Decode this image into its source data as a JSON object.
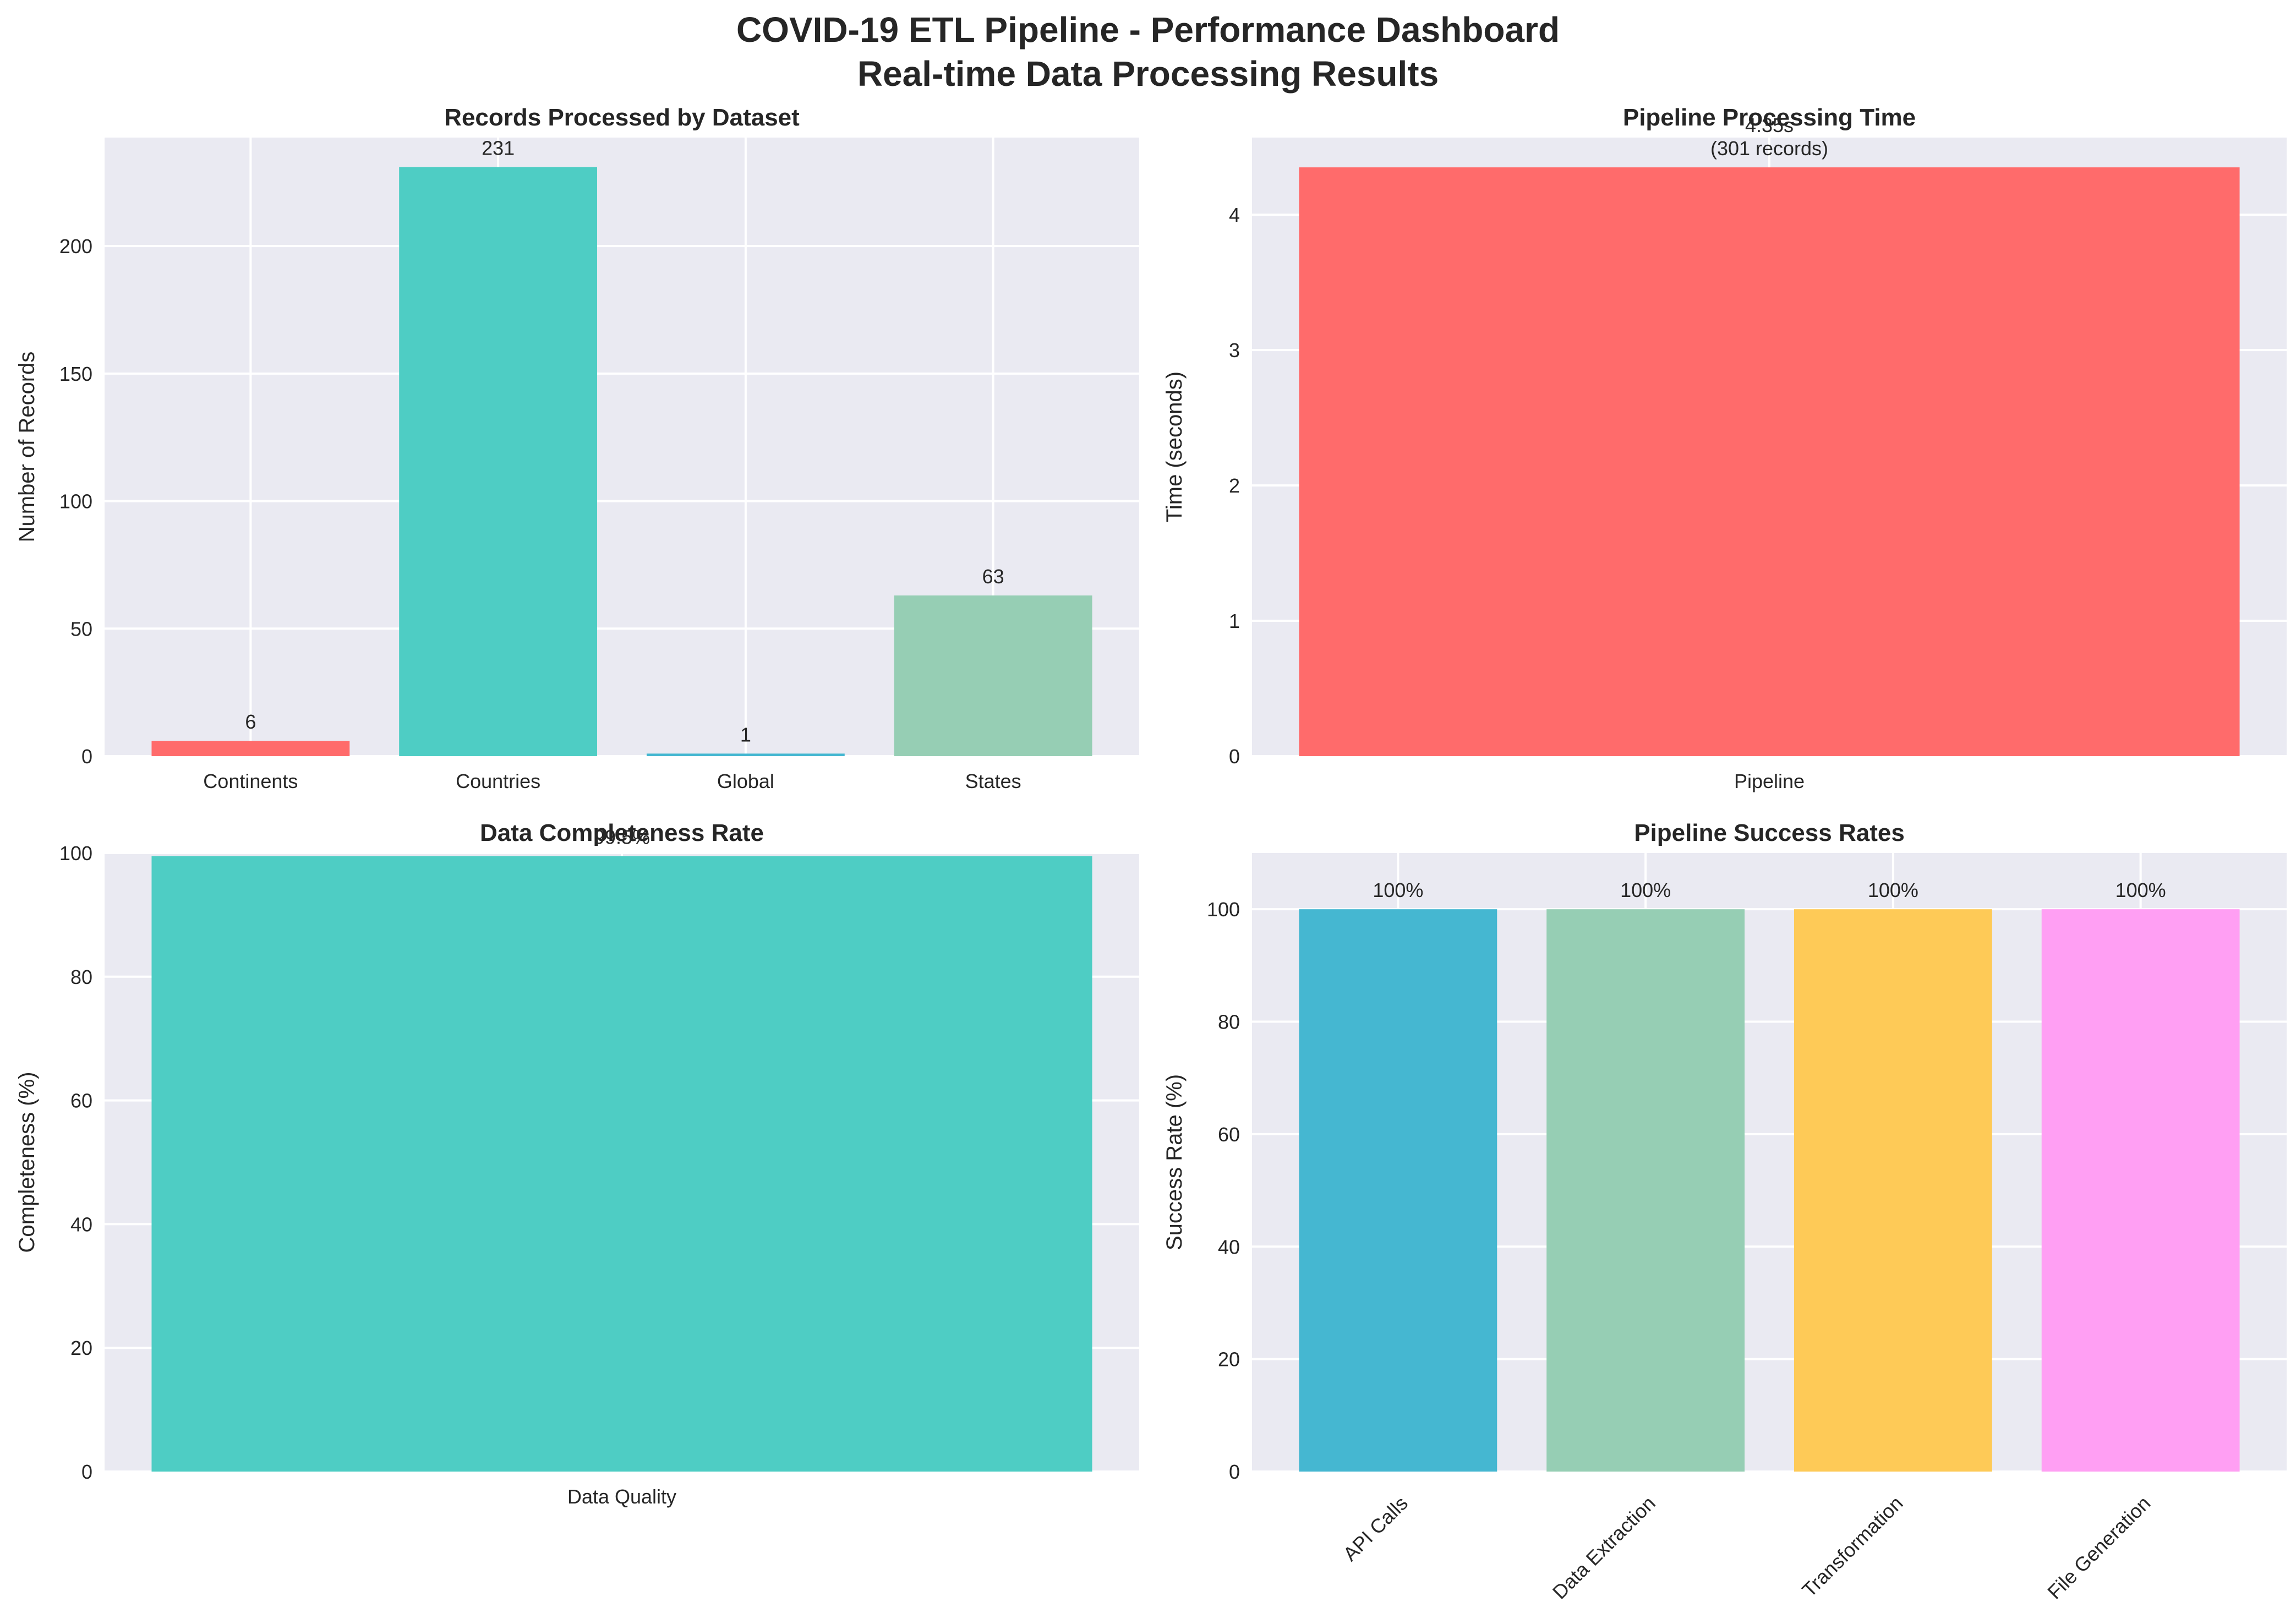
{
  "figure": {
    "title_lines": [
      "COVID-19 ETL Pipeline - Performance Dashboard",
      "Real-time Data Processing Results"
    ],
    "background": "#EAEAF2",
    "grid_color": "#FFFFFF"
  },
  "chart_data": [
    {
      "type": "bar",
      "title": "Records Processed by Dataset",
      "xlabel": "",
      "ylabel": "Number of Records",
      "categories": [
        "Continents",
        "Countries",
        "Global",
        "States"
      ],
      "values": [
        6,
        231,
        1,
        63
      ],
      "bar_labels": [
        "6",
        "231",
        "1",
        "63"
      ],
      "colors": [
        "#FF6B6B",
        "#4ECDC4",
        "#45B7D1",
        "#96CEB4"
      ],
      "ylim": [
        0,
        242.55
      ],
      "yticks": [
        0,
        50,
        100,
        150,
        200
      ],
      "grid": true
    },
    {
      "type": "bar",
      "title": "Pipeline Processing Time",
      "xlabel": "",
      "ylabel": "Time (seconds)",
      "categories": [
        "Pipeline"
      ],
      "values": [
        4.35
      ],
      "bar_labels": [
        "4.35s\n(301 records)"
      ],
      "colors": [
        "#FF6B6B"
      ],
      "ylim": [
        0,
        4.57
      ],
      "yticks": [
        0,
        1,
        2,
        3,
        4
      ],
      "grid": true
    },
    {
      "type": "bar",
      "title": "Data Completeness Rate",
      "xlabel": "",
      "ylabel": "Completeness (%)",
      "categories": [
        "Data Quality"
      ],
      "values": [
        99.5
      ],
      "bar_labels": [
        "99.5%"
      ],
      "colors": [
        "#4ECDC4"
      ],
      "ylim": [
        0,
        100
      ],
      "yticks": [
        0,
        20,
        40,
        60,
        80,
        100
      ],
      "grid": true
    },
    {
      "type": "bar",
      "title": "Pipeline Success Rates",
      "xlabel": "",
      "ylabel": "Success Rate (%)",
      "categories": [
        "API Calls",
        "Data Extraction",
        "Transformation",
        "File Generation"
      ],
      "values": [
        100,
        100,
        100,
        100
      ],
      "bar_labels": [
        "100%",
        "100%",
        "100%",
        "100%"
      ],
      "colors": [
        "#45B7D1",
        "#96CEB4",
        "#FECA57",
        "#FF9FF3"
      ],
      "ylim": [
        0,
        110
      ],
      "yticks": [
        0,
        20,
        40,
        60,
        80,
        100
      ],
      "xtick_rotation": 45,
      "grid": true
    }
  ]
}
